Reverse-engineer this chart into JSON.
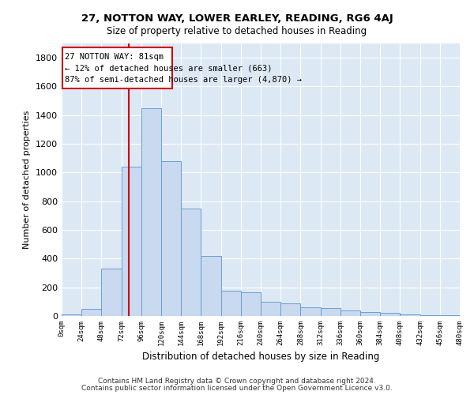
{
  "title": "27, NOTTON WAY, LOWER EARLEY, READING, RG6 4AJ",
  "subtitle": "Size of property relative to detached houses in Reading",
  "xlabel": "Distribution of detached houses by size in Reading",
  "ylabel": "Number of detached properties",
  "bar_color": "#c8d9f0",
  "bar_edge_color": "#6a9fd0",
  "bg_color": "#dde8f5",
  "grid_color": "#ffffff",
  "annotation_box_color": "#cc0000",
  "vline_color": "#cc0000",
  "annotation_line1": "27 NOTTON WAY: 81sqm",
  "annotation_line2": "← 12% of detached houses are smaller (663)",
  "annotation_line3": "87% of semi-detached houses are larger (4,870) →",
  "footnote1": "Contains HM Land Registry data © Crown copyright and database right 2024.",
  "footnote2": "Contains public sector information licensed under the Open Government Licence v3.0.",
  "property_size": 81,
  "bin_edges": [
    0,
    24,
    48,
    72,
    96,
    120,
    144,
    168,
    192,
    216,
    240,
    264,
    288,
    312,
    336,
    360,
    384,
    408,
    432,
    456,
    480
  ],
  "bin_labels": [
    "0sqm",
    "24sqm",
    "48sqm",
    "72sqm",
    "96sqm",
    "120sqm",
    "144sqm",
    "168sqm",
    "192sqm",
    "216sqm",
    "240sqm",
    "264sqm",
    "288sqm",
    "312sqm",
    "336sqm",
    "360sqm",
    "384sqm",
    "408sqm",
    "432sqm",
    "456sqm",
    "480sqm"
  ],
  "counts": [
    10,
    50,
    330,
    1040,
    1450,
    1080,
    750,
    420,
    175,
    165,
    100,
    90,
    60,
    55,
    40,
    30,
    20,
    10,
    5,
    5
  ],
  "ylim": [
    0,
    1900
  ],
  "yticks": [
    0,
    200,
    400,
    600,
    800,
    1000,
    1200,
    1400,
    1600,
    1800
  ]
}
